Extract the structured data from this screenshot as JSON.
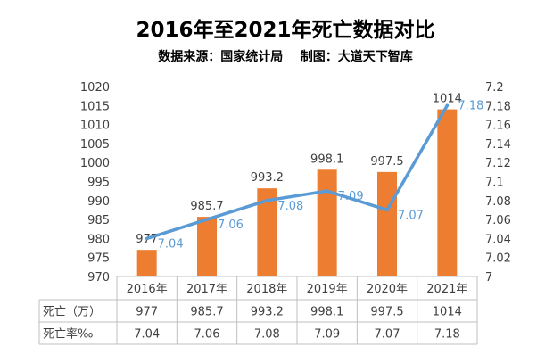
{
  "chart_data": {
    "type": "bar",
    "title": "2016年至2021年死亡数据对比",
    "subtitle": "数据来源：国家统计局    制图：大道天下智库",
    "categories": [
      "2016年",
      "2017年",
      "2018年",
      "2019年",
      "2020年",
      "2021年"
    ],
    "series": [
      {
        "name": "死亡（万）",
        "chart_type": "bar",
        "axis": "left",
        "color": "#ED7D31",
        "values": [
          977,
          985.7,
          993.2,
          998.1,
          997.5,
          1014
        ],
        "labels": [
          "977",
          "985.7",
          "993.2",
          "998.1",
          "997.5",
          "1014"
        ]
      },
      {
        "name": "死亡率‰",
        "chart_type": "line",
        "axis": "right",
        "color": "#5B9BD5",
        "values": [
          7.04,
          7.06,
          7.08,
          7.09,
          7.07,
          7.18
        ],
        "labels": [
          "7.04",
          "7.06",
          "7.08",
          "7.09",
          "7.07",
          "7.18"
        ]
      }
    ],
    "y_left": {
      "min": 970,
      "max": 1020,
      "ticks": [
        "970",
        "975",
        "980",
        "985",
        "990",
        "995",
        "1000",
        "1005",
        "1010",
        "1015",
        "1020"
      ]
    },
    "y_right": {
      "min": 7.0,
      "max": 7.2,
      "ticks": [
        "7",
        "7.02",
        "7.04",
        "7.06",
        "7.08",
        "7.1",
        "7.12",
        "7.14",
        "7.16",
        "7.18",
        "7.2"
      ]
    },
    "data_table": true,
    "legend": "data-table",
    "grid": false
  }
}
